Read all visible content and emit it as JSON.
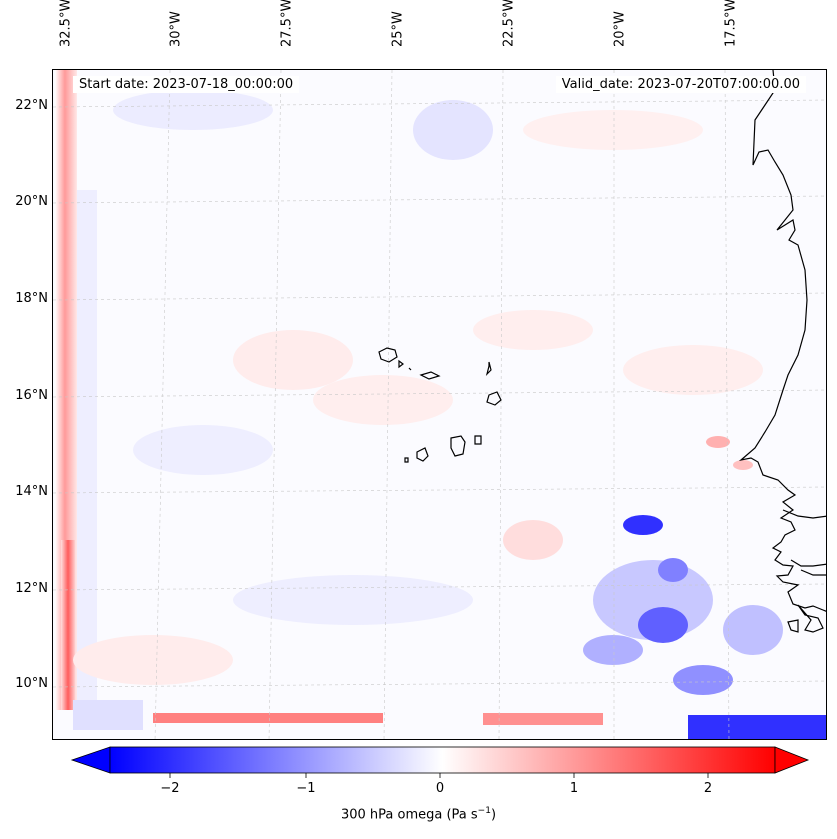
{
  "map": {
    "start_date": "Start date: 2023-07-18_00:00:00",
    "valid_date": "Valid_date: 2023-07-20T07:00:00.00",
    "lon_labels": [
      "32.5°W",
      "30°W",
      "27.5°W",
      "25°W",
      "22.5°W",
      "20°W",
      "17.5°W"
    ],
    "lat_labels": [
      "22°N",
      "20°N",
      "18°N",
      "16°N",
      "14°N",
      "12°N",
      "10°N"
    ],
    "gridlines": true,
    "colors": {
      "negative": "#0000ff",
      "positive": "#ff0000",
      "zero": "#ffffff",
      "coast": "#000000"
    }
  },
  "colorbar": {
    "ticks": [
      "−2",
      "−1",
      "0",
      "1",
      "2"
    ],
    "label_main": "300 hPa omega (Pa s",
    "label_sup": "−1",
    "label_end": ")",
    "range": [
      -2.5,
      2.5
    ],
    "extend": "both"
  }
}
